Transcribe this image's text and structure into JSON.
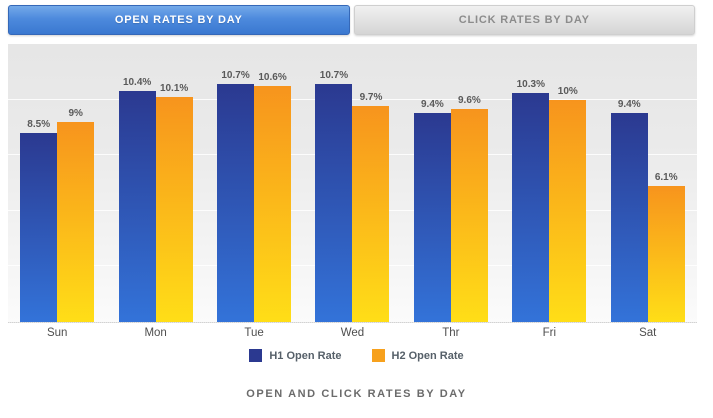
{
  "tabs": [
    {
      "label": "OPEN RATES BY DAY",
      "active": true
    },
    {
      "label": "CLICK RATES BY DAY",
      "active": false
    }
  ],
  "chart_data": {
    "type": "bar",
    "categories": [
      "Sun",
      "Mon",
      "Tue",
      "Wed",
      "Thr",
      "Fri",
      "Sat"
    ],
    "series": [
      {
        "name": "H1 Open Rate",
        "values": [
          8.5,
          10.4,
          10.7,
          10.7,
          9.4,
          10.3,
          9.4
        ],
        "color_top": "#2b3990",
        "color_bottom": "#3373d9",
        "legend_color": "#2b3990"
      },
      {
        "name": "H2 Open Rate",
        "values": [
          9,
          10.1,
          10.6,
          9.7,
          9.6,
          10,
          6.1
        ],
        "color_top": "#f7941d",
        "color_bottom": "#ffde17",
        "legend_color": "#f7a11d"
      }
    ],
    "value_label_suffix": "%",
    "ylim": [
      0,
      12.5
    ],
    "grid": true,
    "grid_step": 2.5,
    "legend_position": "bottom",
    "xlabel": "",
    "ylabel": ""
  },
  "caption": "OPEN AND CLICK RATES BY DAY",
  "colors": {
    "accent_blue": "#3a78d0",
    "bar_blue": "#2b3990",
    "bar_orange": "#f7941d",
    "label_gray": "#595959"
  }
}
